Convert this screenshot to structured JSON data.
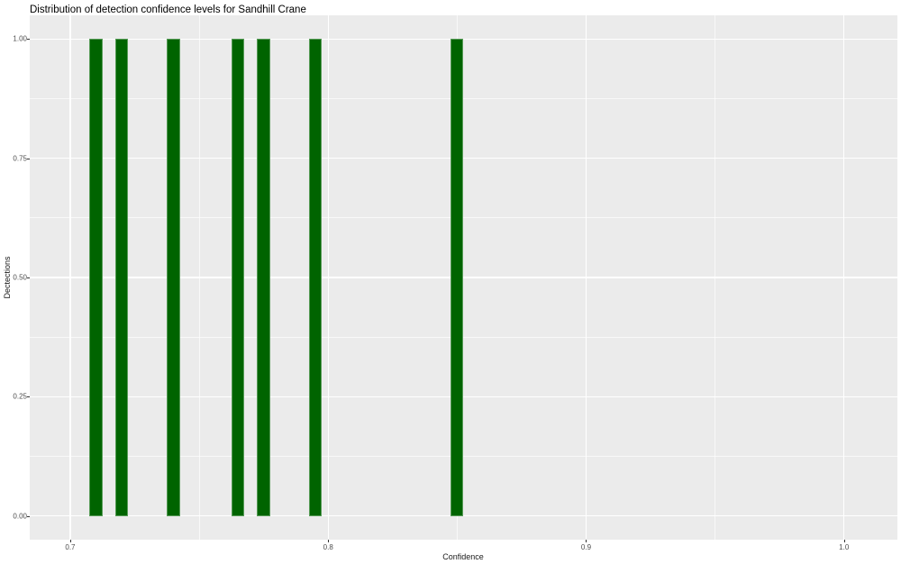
{
  "title": "Distribution of detection confidence levels for Sandhill Crane",
  "chart_data": {
    "type": "bar",
    "subtype": "histogram",
    "title": "Distribution of detection confidence levels for Sandhill Crane",
    "xlabel": "Confidence",
    "ylabel": "Dectections",
    "x": [
      0.71,
      0.72,
      0.74,
      0.765,
      0.775,
      0.795,
      0.85
    ],
    "values": [
      1,
      1,
      1,
      1,
      1,
      1,
      1
    ],
    "binwidth": 0.005,
    "xlim": [
      0.6843,
      1.0207
    ],
    "ylim": [
      -0.05,
      1.05
    ],
    "x_ticks": [
      0.7,
      0.8,
      0.9,
      1.0
    ],
    "x_tick_labels": [
      "0.7",
      "0.8",
      "0.9",
      "1.0"
    ],
    "x_minor_ticks": [
      0.75,
      0.85,
      0.95
    ],
    "y_ticks": [
      0.0,
      0.25,
      0.5,
      0.75,
      1.0
    ],
    "y_tick_labels": [
      "0.00",
      "0.25",
      "0.50",
      "0.75",
      "1.00"
    ],
    "y_minor_ticks": [
      0.125,
      0.375,
      0.625,
      0.875
    ],
    "grid": true,
    "legend": false,
    "colors": {
      "bar_fill": "#006400",
      "bar_edge": "#579b57",
      "panel_background": "#EBEBEB",
      "gridline": "#FFFFFF",
      "tick_text": "#4D4D4D",
      "tick_mark": "#333333",
      "axis_title": "#1A1A1A",
      "title_text": "#000000",
      "figure_background": "#FFFFFF"
    }
  }
}
